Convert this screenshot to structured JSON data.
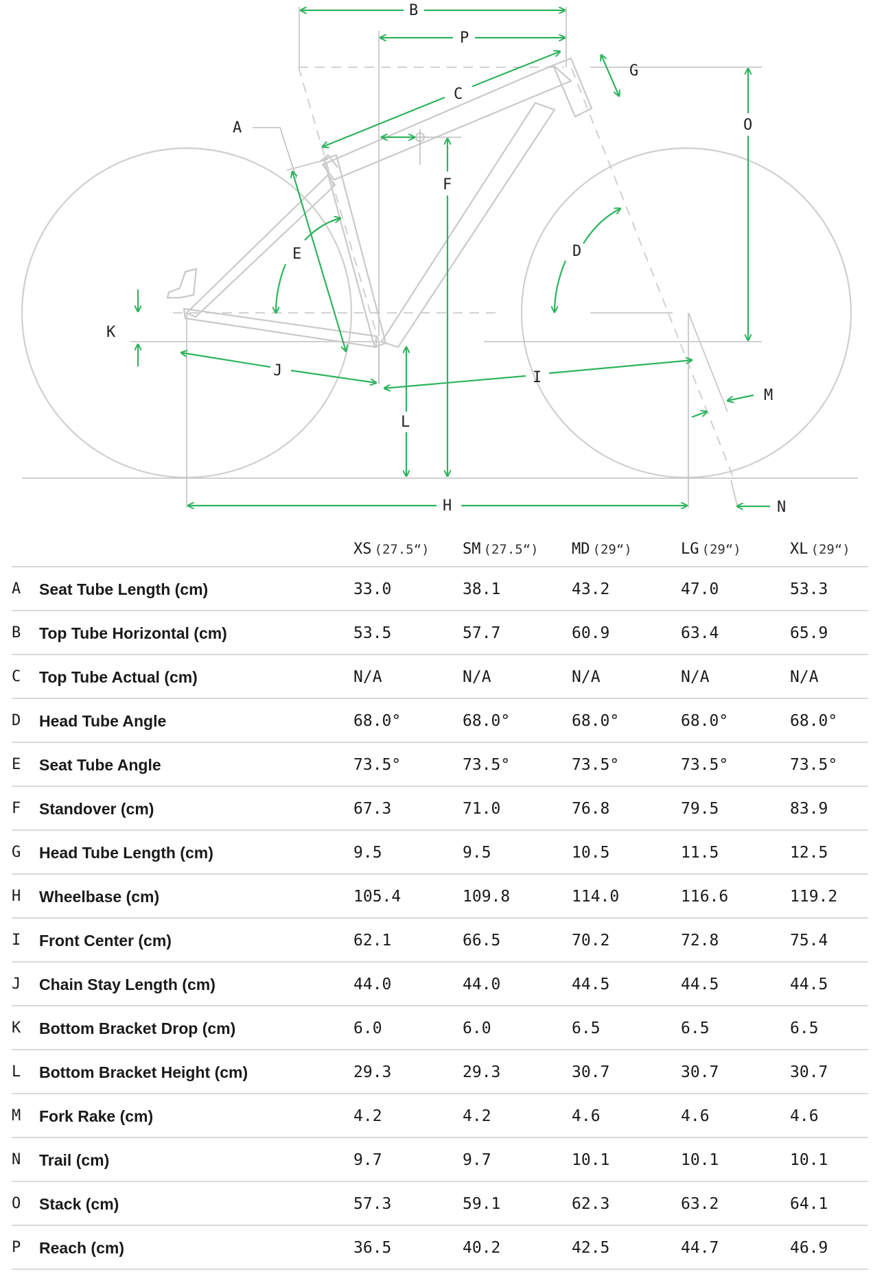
{
  "diagram_labels": {
    "A": "A",
    "B": "B",
    "C": "C",
    "D": "D",
    "E": "E",
    "F": "F",
    "G": "G",
    "H": "H",
    "I": "I",
    "J": "J",
    "K": "K",
    "L": "L",
    "M": "M",
    "N": "N",
    "O": "O",
    "P": "P"
  },
  "table": {
    "sizes": [
      {
        "name": "XS",
        "wheel": "(27.5“)"
      },
      {
        "name": "SM",
        "wheel": "(27.5“)"
      },
      {
        "name": "MD",
        "wheel": "(29“)"
      },
      {
        "name": "LG",
        "wheel": "(29“)"
      },
      {
        "name": "XL",
        "wheel": "(29“)"
      }
    ],
    "rows": [
      {
        "letter": "A",
        "label": "Seat Tube Length (cm)",
        "values": [
          "33.0",
          "38.1",
          "43.2",
          "47.0",
          "53.3"
        ]
      },
      {
        "letter": "B",
        "label": "Top Tube Horizontal (cm)",
        "values": [
          "53.5",
          "57.7",
          "60.9",
          "63.4",
          "65.9"
        ]
      },
      {
        "letter": "C",
        "label": "Top Tube Actual (cm)",
        "values": [
          "N/A",
          "N/A",
          "N/A",
          "N/A",
          "N/A"
        ]
      },
      {
        "letter": "D",
        "label": "Head Tube Angle",
        "values": [
          "68.0°",
          "68.0°",
          "68.0°",
          "68.0°",
          "68.0°"
        ]
      },
      {
        "letter": "E",
        "label": "Seat Tube Angle",
        "values": [
          "73.5°",
          "73.5°",
          "73.5°",
          "73.5°",
          "73.5°"
        ]
      },
      {
        "letter": "F",
        "label": "Standover (cm)",
        "values": [
          "67.3",
          "71.0",
          "76.8",
          "79.5",
          "83.9"
        ]
      },
      {
        "letter": "G",
        "label": "Head Tube Length (cm)",
        "values": [
          "9.5",
          "9.5",
          "10.5",
          "11.5",
          "12.5"
        ]
      },
      {
        "letter": "H",
        "label": "Wheelbase (cm)",
        "values": [
          "105.4",
          "109.8",
          "114.0",
          "116.6",
          "119.2"
        ]
      },
      {
        "letter": "I",
        "label": "Front Center (cm)",
        "values": [
          "62.1",
          "66.5",
          "70.2",
          "72.8",
          "75.4"
        ]
      },
      {
        "letter": "J",
        "label": "Chain Stay Length (cm)",
        "values": [
          "44.0",
          "44.0",
          "44.5",
          "44.5",
          "44.5"
        ]
      },
      {
        "letter": "K",
        "label": "Bottom Bracket Drop (cm)",
        "values": [
          "6.0",
          "6.0",
          "6.5",
          "6.5",
          "6.5"
        ]
      },
      {
        "letter": "L",
        "label": "Bottom Bracket Height (cm)",
        "values": [
          "29.3",
          "29.3",
          "30.7",
          "30.7",
          "30.7"
        ]
      },
      {
        "letter": "M",
        "label": "Fork Rake (cm)",
        "values": [
          "4.2",
          "4.2",
          "4.6",
          "4.6",
          "4.6"
        ]
      },
      {
        "letter": "N",
        "label": "Trail (cm)",
        "values": [
          "9.7",
          "9.7",
          "10.1",
          "10.1",
          "10.1"
        ]
      },
      {
        "letter": "O",
        "label": "Stack (cm)",
        "values": [
          "57.3",
          "59.1",
          "62.3",
          "63.2",
          "64.1"
        ]
      },
      {
        "letter": "P",
        "label": "Reach (cm)",
        "values": [
          "36.5",
          "40.2",
          "42.5",
          "44.7",
          "46.9"
        ]
      }
    ]
  }
}
